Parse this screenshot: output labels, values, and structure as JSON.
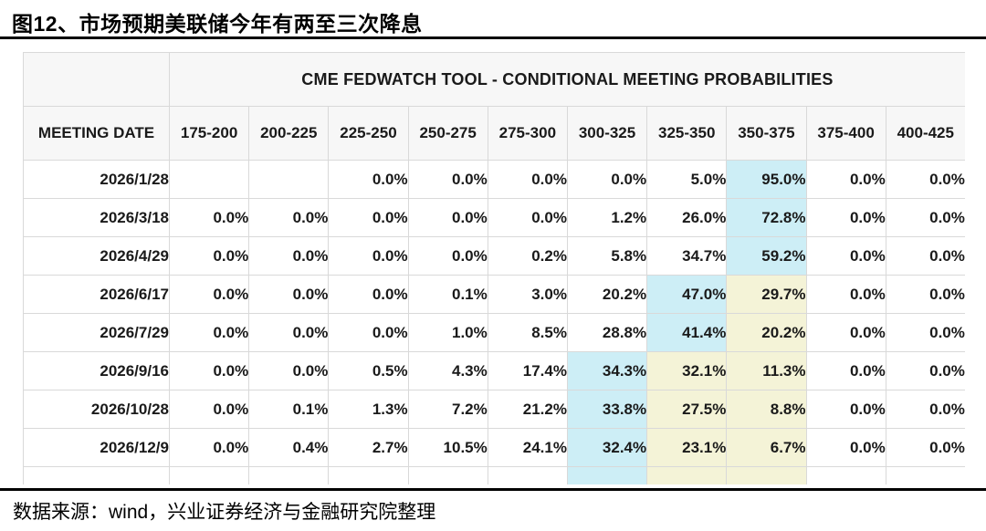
{
  "figure": {
    "title": "图12、市场预期美联储今年有两至三次降息",
    "source_note": "数据来源：wind，兴业证券经济与金融研究院整理"
  },
  "chart_data": {
    "type": "table",
    "table_title": "CME FEDWATCH TOOL - CONDITIONAL MEETING PROBABILITIES",
    "row_header": "MEETING DATE",
    "columns": [
      "175-200",
      "200-225",
      "225-250",
      "250-275",
      "275-300",
      "300-325",
      "325-350",
      "350-375",
      "375-400",
      "400-425"
    ],
    "rows": [
      {
        "date": "2026/1/28",
        "values": [
          "",
          "",
          "0.0%",
          "0.0%",
          "0.0%",
          "0.0%",
          "5.0%",
          "95.0%",
          "0.0%",
          "0.0%"
        ],
        "cyan_cols": [
          7
        ],
        "yellow_cols": []
      },
      {
        "date": "2026/3/18",
        "values": [
          "0.0%",
          "0.0%",
          "0.0%",
          "0.0%",
          "0.0%",
          "1.2%",
          "26.0%",
          "72.8%",
          "0.0%",
          "0.0%"
        ],
        "cyan_cols": [
          7
        ],
        "yellow_cols": []
      },
      {
        "date": "2026/4/29",
        "values": [
          "0.0%",
          "0.0%",
          "0.0%",
          "0.0%",
          "0.2%",
          "5.8%",
          "34.7%",
          "59.2%",
          "0.0%",
          "0.0%"
        ],
        "cyan_cols": [
          7
        ],
        "yellow_cols": []
      },
      {
        "date": "2026/6/17",
        "values": [
          "0.0%",
          "0.0%",
          "0.0%",
          "0.1%",
          "3.0%",
          "20.2%",
          "47.0%",
          "29.7%",
          "0.0%",
          "0.0%"
        ],
        "cyan_cols": [
          6
        ],
        "yellow_cols": [
          7
        ]
      },
      {
        "date": "2026/7/29",
        "values": [
          "0.0%",
          "0.0%",
          "0.0%",
          "1.0%",
          "8.5%",
          "28.8%",
          "41.4%",
          "20.2%",
          "0.0%",
          "0.0%"
        ],
        "cyan_cols": [
          6
        ],
        "yellow_cols": [
          7
        ]
      },
      {
        "date": "2026/9/16",
        "values": [
          "0.0%",
          "0.0%",
          "0.5%",
          "4.3%",
          "17.4%",
          "34.3%",
          "32.1%",
          "11.3%",
          "0.0%",
          "0.0%"
        ],
        "cyan_cols": [
          5
        ],
        "yellow_cols": [
          6,
          7
        ]
      },
      {
        "date": "2026/10/28",
        "values": [
          "0.0%",
          "0.1%",
          "1.3%",
          "7.2%",
          "21.2%",
          "33.8%",
          "27.5%",
          "8.8%",
          "0.0%",
          "0.0%"
        ],
        "cyan_cols": [
          5
        ],
        "yellow_cols": [
          6,
          7
        ]
      },
      {
        "date": "2026/12/9",
        "values": [
          "0.0%",
          "0.4%",
          "2.7%",
          "10.5%",
          "24.1%",
          "32.4%",
          "23.1%",
          "6.7%",
          "0.0%",
          "0.0%"
        ],
        "cyan_cols": [
          5
        ],
        "yellow_cols": [
          6,
          7
        ]
      }
    ],
    "partial_next_row": {
      "cyan_cols": [
        5
      ],
      "yellow_cols": [
        6,
        7
      ]
    },
    "colors": {
      "cyan_highlight": "#cdeef6",
      "yellow_highlight": "#f4f3d7",
      "header_bg": "#f7f7f7",
      "border": "#d9d9d9",
      "rule": "#000000"
    }
  }
}
